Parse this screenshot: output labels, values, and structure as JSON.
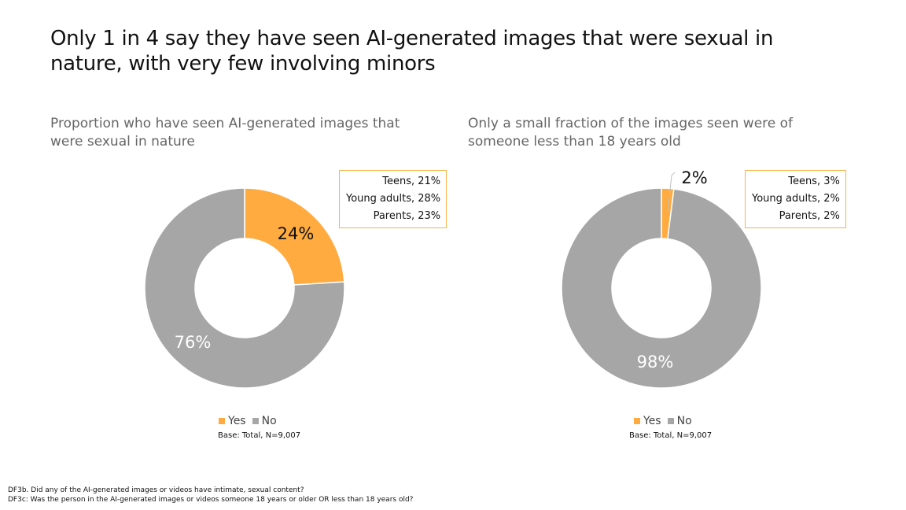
{
  "title": "Only 1 in 4 say they have seen AI-generated images that were sexual in nature, with very few involving minors",
  "colors": {
    "yes": "#FFAB40",
    "no": "#A6A6A6",
    "callout_border": "#F6B44A"
  },
  "chart_data": [
    {
      "type": "pie",
      "subtitle": "Proportion who have seen AI-generated images that were sexual in nature",
      "categories": [
        "Yes",
        "No"
      ],
      "values": [
        24,
        76
      ],
      "data_labels": [
        "24%",
        "76%"
      ],
      "callout": [
        "Teens, 21%",
        "Young adults, 28%",
        "Parents, 23%"
      ],
      "legend": [
        "Yes",
        "No"
      ],
      "base": "Base: Total, N=9,007"
    },
    {
      "type": "pie",
      "subtitle": "Only a small fraction of the images seen were of someone less than 18 years old",
      "categories": [
        "Yes",
        "No"
      ],
      "values": [
        2,
        98
      ],
      "data_labels": [
        "2%",
        "98%"
      ],
      "callout": [
        "Teens, 3%",
        "Young adults, 2%",
        "Parents, 2%"
      ],
      "legend": [
        "Yes",
        "No"
      ],
      "base": "Base: Total, N=9,007"
    }
  ],
  "footnotes": [
    "DF3b. Did any of the AI-generated images or videos have intimate, sexual content?",
    "DF3c: Was the person in the AI-generated images or videos someone 18 years or older OR less than 18 years old?"
  ]
}
